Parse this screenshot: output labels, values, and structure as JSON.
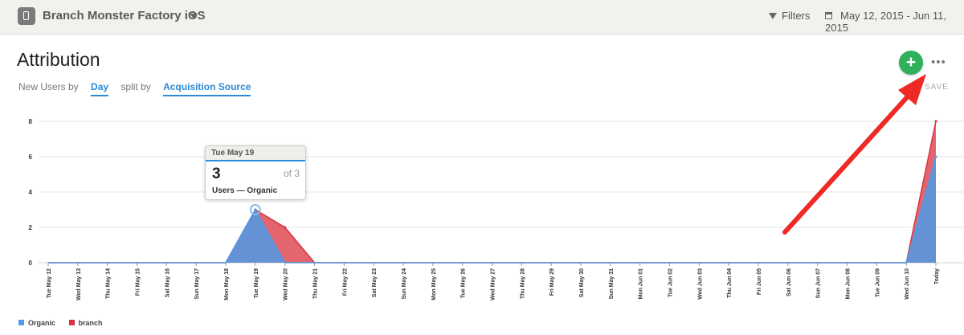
{
  "header": {
    "app_name": "Branch Monster Factory iOS",
    "filters_label": "Filters",
    "date_range": "May 12, 2015 - Jun 11, 2015"
  },
  "report": {
    "title": "Attribution",
    "query_prefix": "New Users by",
    "interval": "Day",
    "split_word": "split by",
    "split_value": "Acquisition Source",
    "add_label": "+",
    "more_label": "•••",
    "save_label": "SAVE"
  },
  "tooltip": {
    "date": "Tue May 19",
    "value": "3",
    "of_total": "of 3",
    "series_label": "Users — Organic"
  },
  "colors": {
    "organic": "#4d9ae8",
    "branch": "#d9333f",
    "accent": "#2b8bd9",
    "add": "#2eb15a",
    "arrow": "#ee2a27"
  },
  "chart_data": {
    "type": "area",
    "title": "",
    "xlabel": "",
    "ylabel": "",
    "ylim": [
      0,
      8
    ],
    "yticks": [
      0,
      2,
      4,
      6,
      8
    ],
    "grid": true,
    "legend_position": "bottom-left",
    "categories": [
      "Tue May 12",
      "Wed May 13",
      "Thu May 14",
      "Fri May 15",
      "Sat May 16",
      "Sun May 17",
      "Mon May 18",
      "Tue May 19",
      "Wed May 20",
      "Thu May 21",
      "Fri May 22",
      "Sat May 23",
      "Sun May 24",
      "Mon May 25",
      "Tue May 26",
      "Wed May 27",
      "Thu May 28",
      "Fri May 29",
      "Sat May 30",
      "Sun May 31",
      "Mon Jun 01",
      "Tue Jun 02",
      "Wed Jun 03",
      "Thu Jun 04",
      "Fri Jun 05",
      "Sat Jun 06",
      "Sun Jun 07",
      "Mon Jun 08",
      "Tue Jun 09",
      "Wed Jun 10",
      "Today"
    ],
    "series": [
      {
        "name": "Organic",
        "values": [
          0,
          0,
          0,
          0,
          0,
          0,
          0,
          3,
          0,
          0,
          0,
          0,
          0,
          0,
          0,
          0,
          0,
          0,
          0,
          0,
          0,
          0,
          0,
          0,
          0,
          0,
          0,
          0,
          0,
          0,
          6
        ]
      },
      {
        "name": "branch",
        "values": [
          0,
          0,
          0,
          0,
          0,
          0,
          0,
          3,
          2,
          0,
          0,
          0,
          0,
          0,
          0,
          0,
          0,
          0,
          0,
          0,
          0,
          0,
          0,
          0,
          0,
          0,
          0,
          0,
          0,
          0,
          8
        ]
      }
    ]
  }
}
